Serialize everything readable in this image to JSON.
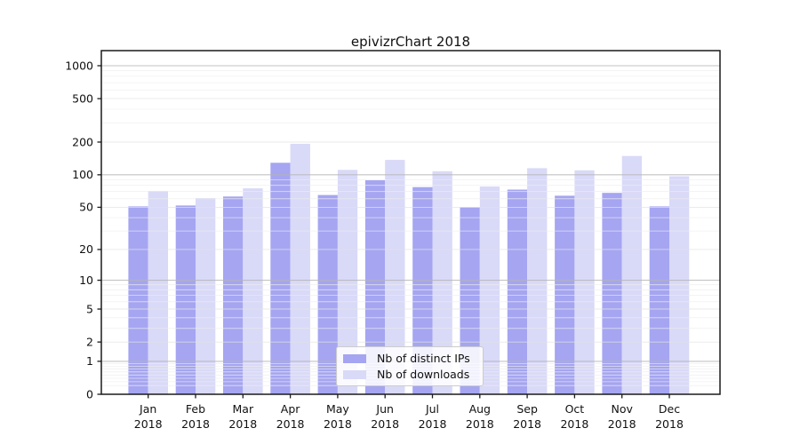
{
  "chart_data": {
    "type": "bar",
    "title": "epivizrChart 2018",
    "categories": [
      "Jan",
      "Feb",
      "Mar",
      "Apr",
      "May",
      "Jun",
      "Jul",
      "Aug",
      "Sep",
      "Oct",
      "Nov",
      "Dec"
    ],
    "category_year": "2018",
    "series": [
      {
        "name": "Nb of distinct IPs",
        "color": "#a5a5f2",
        "values": [
          51,
          52,
          63,
          129,
          65,
          89,
          77,
          50,
          73,
          64,
          68,
          51
        ]
      },
      {
        "name": "Nb of downloads",
        "color": "#d9d9f8",
        "values": [
          71,
          61,
          75,
          193,
          111,
          137,
          108,
          78,
          115,
          110,
          149,
          97
        ]
      }
    ],
    "y_axis": {
      "scale": "log1p",
      "ticks": [
        1000,
        500,
        200,
        100,
        50,
        20,
        10,
        5,
        2,
        1,
        0
      ],
      "top_value": 1000
    },
    "legend_position": "lower center",
    "grid": true
  },
  "colors": {
    "grid_major": "#b5b5b5",
    "grid_labeled": "#e3e3e3",
    "grid_minor": "#eeeeee",
    "spine": "#1a1a1a",
    "text": "#111111"
  }
}
